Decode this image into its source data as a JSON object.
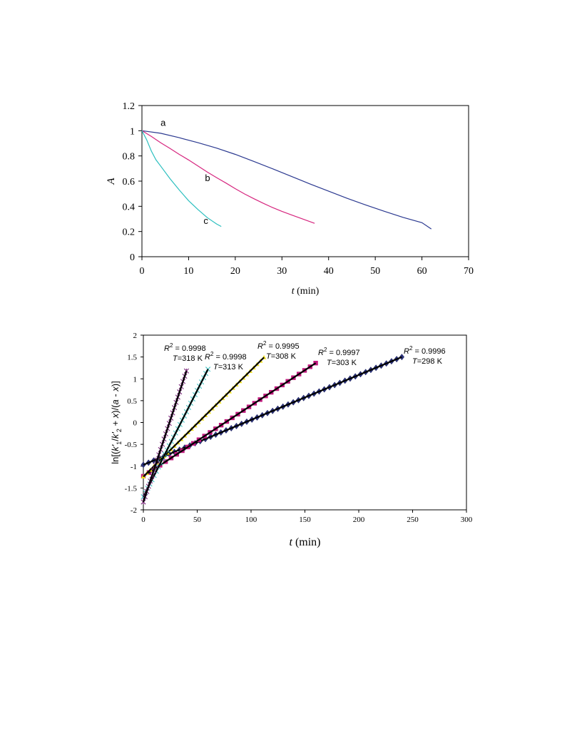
{
  "chart_data": [
    {
      "type": "line",
      "title": "",
      "xlabel": {
        "var": "t",
        "unit": " (min)"
      },
      "ylabel": "A",
      "xlim": [
        0,
        70
      ],
      "ylim": [
        0,
        1.2
      ],
      "xticks": [
        "0",
        "10",
        "20",
        "30",
        "40",
        "50",
        "60",
        "70"
      ],
      "yticks": [
        "0",
        "0.2",
        "0.4",
        "0.6",
        "0.8",
        "1",
        "1.2"
      ],
      "grid": false,
      "series": [
        {
          "label": "a",
          "color": "#2b3990",
          "x": [
            0,
            4,
            8,
            12,
            16,
            20,
            24,
            28,
            32,
            36,
            40,
            44,
            48,
            52,
            56,
            60,
            62
          ],
          "y": [
            1.0,
            0.98,
            0.945,
            0.905,
            0.862,
            0.812,
            0.756,
            0.698,
            0.638,
            0.578,
            0.52,
            0.463,
            0.41,
            0.36,
            0.312,
            0.27,
            0.22
          ]
        },
        {
          "label": "b",
          "color": "#d6267f",
          "x": [
            0,
            2,
            4,
            6,
            8,
            10,
            12,
            14,
            16,
            18,
            20,
            22,
            24,
            26,
            28,
            30,
            32,
            34,
            37
          ],
          "y": [
            1.0,
            0.955,
            0.905,
            0.86,
            0.812,
            0.768,
            0.72,
            0.672,
            0.628,
            0.585,
            0.54,
            0.498,
            0.46,
            0.424,
            0.39,
            0.36,
            0.332,
            0.305,
            0.265
          ]
        },
        {
          "label": "c",
          "color": "#2bbfbf",
          "x": [
            0,
            1,
            2,
            3,
            4,
            6,
            8,
            10,
            12,
            14,
            16,
            17
          ],
          "y": [
            1.0,
            0.93,
            0.84,
            0.77,
            0.72,
            0.62,
            0.53,
            0.445,
            0.375,
            0.31,
            0.26,
            0.24
          ]
        }
      ]
    },
    {
      "type": "scatter",
      "title": "",
      "xlabel": {
        "var": "t",
        "unit": " (min)"
      },
      "ylabel": "ln[(k'1/k'2 + x)/(a - x)]",
      "xlim": [
        0,
        300
      ],
      "ylim": [
        -2,
        2
      ],
      "xticks": [
        "0",
        "50",
        "100",
        "150",
        "200",
        "250",
        "300"
      ],
      "yticks": [
        "-2",
        "-1.5",
        "-1",
        "-0.5",
        "0",
        "0.5",
        "1",
        "1.5",
        "2"
      ],
      "grid": false,
      "series": [
        {
          "T": "298",
          "R2": "0.9996",
          "marker": "diamond",
          "color": "#2d3580",
          "x_start": 0,
          "x_end": 240,
          "y_start": -0.97,
          "y_end": 1.5
        },
        {
          "T": "303",
          "R2": "0.9997",
          "marker": "square",
          "color": "#c0197d",
          "x_start": 0,
          "x_end": 160,
          "y_start": -1.23,
          "y_end": 1.36
        },
        {
          "T": "308",
          "R2": "0.9995",
          "marker": "triangle",
          "color": "#f2e21a",
          "x_start": 0,
          "x_end": 112,
          "y_start": -1.24,
          "y_end": 1.49
        },
        {
          "T": "313",
          "R2": "0.9998",
          "marker": "x",
          "color": "#43c4c4",
          "x_start": 0,
          "x_end": 60,
          "y_start": -1.7,
          "y_end": 1.22
        },
        {
          "T": "318",
          "R2": "0.9998",
          "marker": "star",
          "color": "#7b2a7b",
          "x_start": 0,
          "x_end": 40,
          "y_start": -1.82,
          "y_end": 1.18
        }
      ]
    }
  ]
}
